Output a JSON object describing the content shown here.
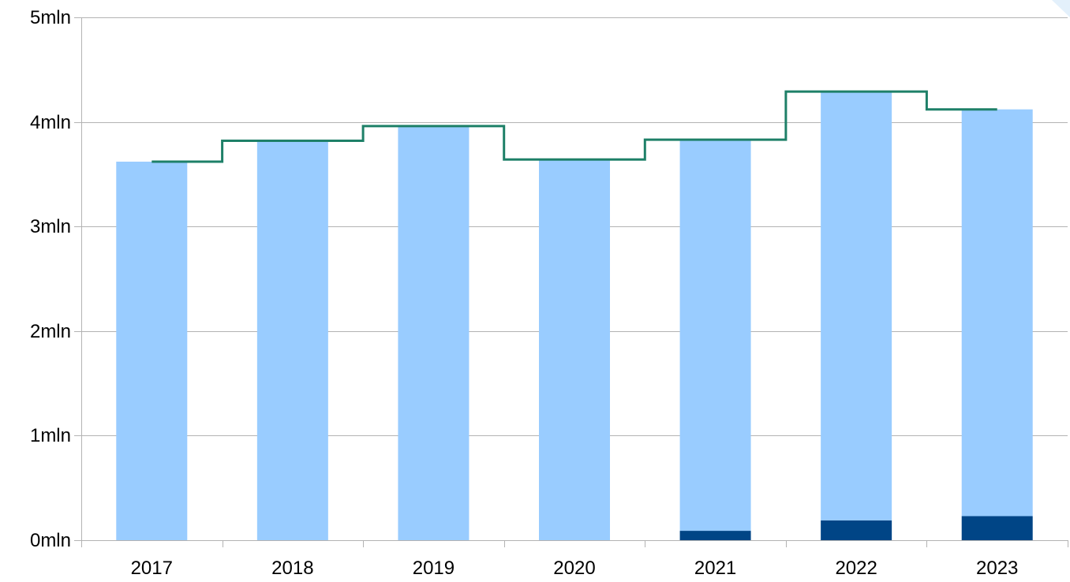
{
  "chart_data": {
    "type": "bar",
    "stacked": true,
    "categories": [
      "2017",
      "2018",
      "2019",
      "2020",
      "2021",
      "2022",
      "2023"
    ],
    "series": [
      {
        "values": [
          0,
          0,
          0,
          0,
          0.09,
          0.19,
          0.23
        ],
        "color": "#004586"
      },
      {
        "values": [
          3.62,
          3.82,
          3.96,
          3.64,
          3.74,
          4.1,
          3.89
        ],
        "color": "#99ccff"
      }
    ],
    "line_series": {
      "type": "step",
      "values": [
        3.62,
        3.82,
        3.96,
        3.64,
        3.83,
        4.29,
        4.12
      ],
      "color": "#1e8068"
    },
    "y_ticks": [
      "0mln",
      "1mln",
      "2mln",
      "3mln",
      "4mln",
      "5mln"
    ],
    "ylim": [
      0,
      5
    ],
    "grid": true,
    "legend": "none"
  }
}
